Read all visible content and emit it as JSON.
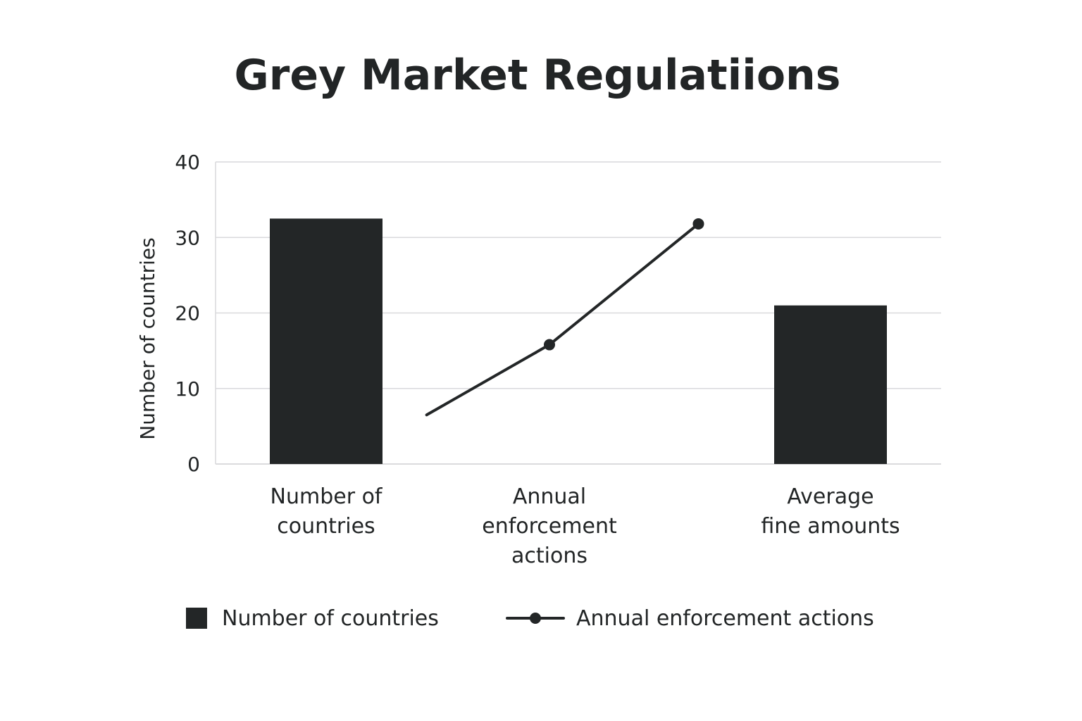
{
  "chart_data": {
    "type": "bar",
    "title": "Grey Market Regulatiions",
    "ylabel": "Number of countries",
    "xlabel": "",
    "ylim": [
      0,
      40
    ],
    "yticks": [
      0,
      10,
      20,
      30,
      40
    ],
    "grid": true,
    "categories": [
      [
        "Number of",
        "countries"
      ],
      [
        "Annual",
        "enforcement",
        "actions"
      ],
      [
        "Average",
        "fine amounts"
      ]
    ],
    "bars": [
      {
        "category_index": 0,
        "value": 32.5
      },
      {
        "category_index": 2,
        "value": 21
      }
    ],
    "line": {
      "name": "Annual enforcement actions",
      "points": [
        {
          "x": 0.45,
          "y": 6.5,
          "marker": false
        },
        {
          "x": 1,
          "y": 15.8,
          "marker": true
        },
        {
          "x": 1.53,
          "y": 31.8,
          "marker": true
        }
      ]
    },
    "legend": {
      "placement": "bottom",
      "items": [
        {
          "label": "Number of countries",
          "kind": "bar"
        },
        {
          "label": "Annual enforcement actions",
          "kind": "line"
        }
      ]
    },
    "colors": {
      "bar": "#232627",
      "line": "#232627",
      "grid": "#d9d9dc",
      "axis": "#cfcfd2"
    }
  }
}
